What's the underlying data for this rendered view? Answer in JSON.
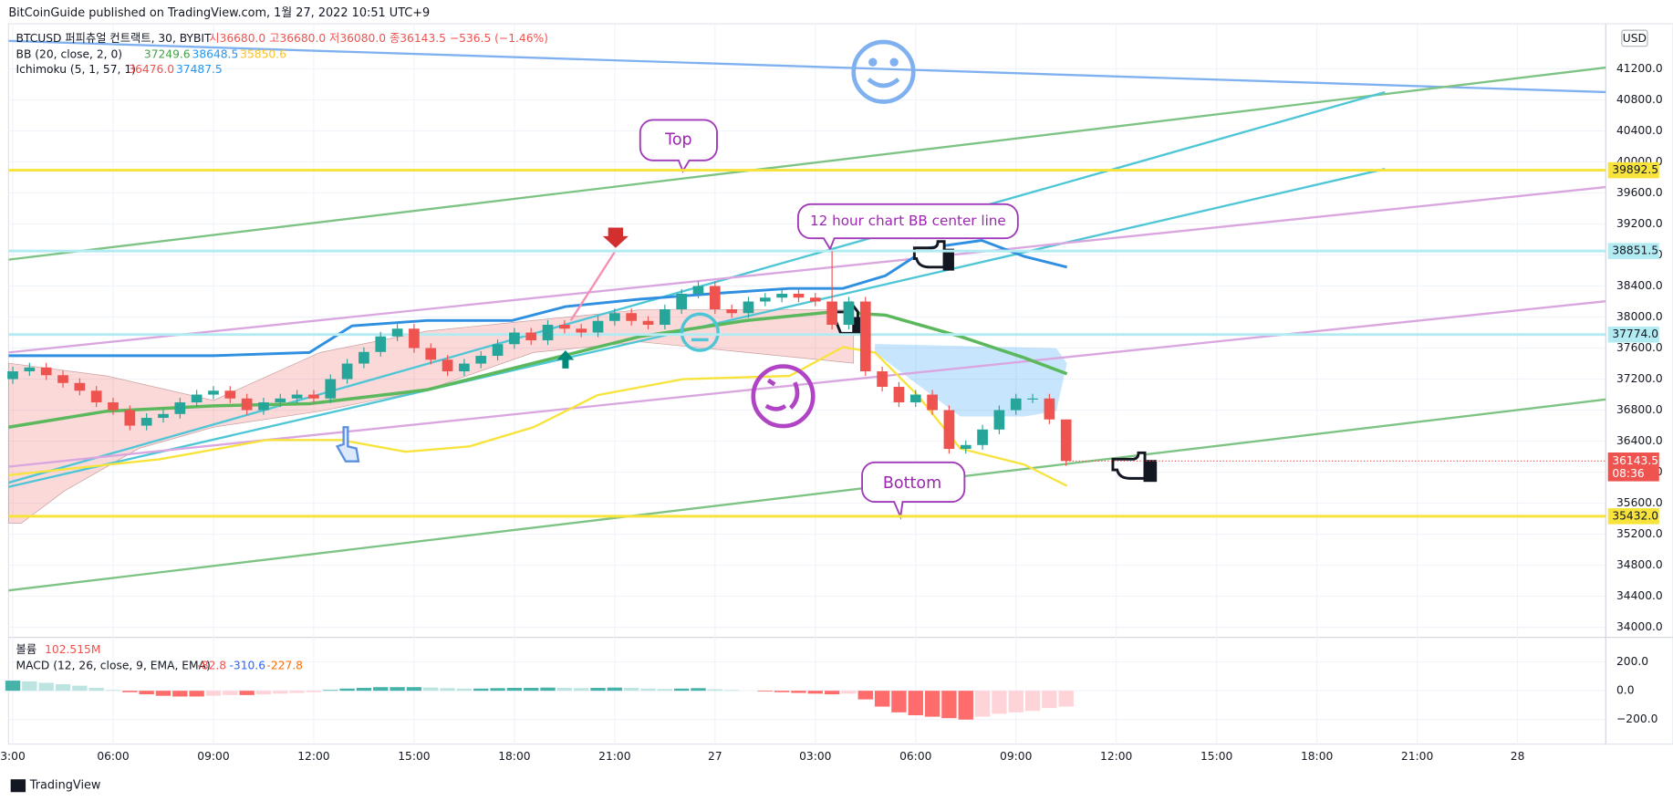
{
  "header": {
    "byline": "BitCoinGuide published on TradingView.com, 1월 27, 2022 10:51 UTC+9",
    "footer": "TradingView"
  },
  "legend": {
    "symbol": "BTCUSD 퍼피츄얼 컨트랙트, 30, BYBIT",
    "ohlc": "시36680.0 고36680.0 저36080.0 종36143.5 −536.5 (−1.46%)",
    "bb": "BB (20, close, 2, 0)",
    "bb_values": [
      "37249.6",
      "38648.5",
      "35850.6"
    ],
    "ichimoku": "Ichimoku (5, 1, 57, 1)",
    "ichimoku_values": [
      "36476.0",
      "37487.5"
    ],
    "volume": "볼륨",
    "volume_value": "102.515M",
    "macd": "MACD (12, 26, close, 9, EMA, EMA)",
    "macd_values": [
      "-82.8",
      "-310.6",
      "-227.8"
    ]
  },
  "annotations": [
    "Top",
    "12 hour chart BB center line",
    "Bottom"
  ],
  "chart_data": {
    "type": "candlestick",
    "currency": "USD",
    "countdown": "08:36",
    "grid": true,
    "up_color": "#26a69a",
    "down_color": "#ef5350",
    "xticks": [
      "3:00",
      "06:00",
      "09:00",
      "12:00",
      "15:00",
      "18:00",
      "21:00",
      "27",
      "03:00",
      "06:00",
      "09:00",
      "12:00",
      "15:00",
      "18:00",
      "21:00",
      "28"
    ],
    "open": [
      37200,
      37300,
      37350,
      37250,
      37150,
      37050,
      36900,
      36800,
      36600,
      36700,
      36750,
      36900,
      37000,
      37050,
      36950,
      36800,
      36900,
      36950,
      37000,
      36950,
      37200,
      37400,
      37550,
      37750,
      37850,
      37600,
      37450,
      37300,
      37400,
      37500,
      37650,
      37800,
      37700,
      37900,
      37850,
      37800,
      37950,
      38050,
      37950,
      37900,
      38100,
      38300,
      38400,
      38100,
      38050,
      38200,
      38250,
      38300,
      38250,
      38200,
      37900,
      38200,
      37300,
      37100,
      36900,
      37000,
      36800,
      36300,
      36350,
      36550,
      36800,
      36950,
      36950,
      36680
    ],
    "high": [
      37360,
      37410,
      37410,
      37310,
      37210,
      37110,
      36960,
      36860,
      36760,
      36810,
      36960,
      37060,
      37110,
      37110,
      37010,
      36960,
      37010,
      37060,
      37060,
      37260,
      37460,
      37610,
      37810,
      37910,
      37910,
      37660,
      37510,
      37460,
      37560,
      37710,
      37860,
      37860,
      37960,
      37960,
      37910,
      38010,
      38110,
      38110,
      38010,
      38160,
      38360,
      38460,
      38460,
      38160,
      38260,
      38310,
      38360,
      38360,
      38310,
      38850,
      38260,
      38260,
      37360,
      37160,
      37060,
      37060,
      36860,
      36410,
      36610,
      36860,
      37010,
      37010,
      37010,
      36680
    ],
    "low": [
      37140,
      37240,
      37190,
      37090,
      36990,
      36840,
      36740,
      36540,
      36540,
      36640,
      36690,
      36840,
      36940,
      36890,
      36740,
      36740,
      36840,
      36890,
      36890,
      36890,
      37140,
      37340,
      37490,
      37690,
      37540,
      37390,
      37240,
      37240,
      37340,
      37440,
      37590,
      37640,
      37640,
      37790,
      37740,
      37740,
      37890,
      37890,
      37840,
      37840,
      38040,
      38240,
      38040,
      37990,
      37990,
      38140,
      38190,
      38190,
      38140,
      37840,
      37840,
      37240,
      37040,
      36840,
      36840,
      36740,
      36240,
      36240,
      36290,
      36490,
      36740,
      36890,
      36620,
      36080
    ],
    "close": [
      37300,
      37350,
      37250,
      37150,
      37050,
      36900,
      36800,
      36600,
      36700,
      36750,
      36900,
      37000,
      37050,
      36950,
      36800,
      36900,
      36950,
      37000,
      36950,
      37200,
      37400,
      37550,
      37750,
      37850,
      37600,
      37450,
      37300,
      37400,
      37500,
      37650,
      37800,
      37700,
      37900,
      37850,
      37800,
      37950,
      38050,
      37950,
      37900,
      38100,
      38300,
      38400,
      38100,
      38050,
      38200,
      38250,
      38300,
      38250,
      38200,
      37900,
      38200,
      37300,
      37100,
      36900,
      37000,
      36800,
      36300,
      36350,
      36550,
      36800,
      36950,
      36950,
      36680,
      36143.5
    ],
    "ylim": [
      33870,
      41780
    ],
    "yticks": [
      {
        "value": 34000,
        "label": "34000.0"
      },
      {
        "value": 34400,
        "label": "34400.0"
      },
      {
        "value": 34800,
        "label": "34800.0"
      },
      {
        "value": 35200,
        "label": "35200.0"
      },
      {
        "value": 35600,
        "label": "35600.0"
      },
      {
        "value": 36000,
        "label": "36000.0"
      },
      {
        "value": 36400,
        "label": "36400.0"
      },
      {
        "value": 36800,
        "label": "36800.0"
      },
      {
        "value": 37200,
        "label": "37200.0"
      },
      {
        "value": 37600,
        "label": "37600.0"
      },
      {
        "value": 38000,
        "label": "38000.0"
      },
      {
        "value": 38400,
        "label": "38400.0"
      },
      {
        "value": 38800,
        "label": "38800.0"
      },
      {
        "value": 39200,
        "label": "39200.0"
      },
      {
        "value": 39600,
        "label": "39600.0"
      },
      {
        "value": 40000,
        "label": "40000.0"
      },
      {
        "value": 40400,
        "label": "40400.0"
      },
      {
        "value": 40800,
        "label": "40800.0"
      },
      {
        "value": 41200,
        "label": "41200.0"
      }
    ],
    "levels": [
      {
        "value": 39892.5,
        "color": "#f7e33a"
      },
      {
        "value": 38851.5,
        "color": "#b2ebf2"
      },
      {
        "value": 37774,
        "label": "37774.0",
        "color": "#b2ebf2"
      },
      {
        "value": 35432,
        "label": "35432.0",
        "color": "#f7e33a"
      }
    ],
    "macd_hist": [
      70,
      65,
      55,
      45,
      35,
      20,
      5,
      -10,
      -25,
      -35,
      -40,
      -40,
      -35,
      -30,
      -30,
      -25,
      -20,
      -15,
      -10,
      5,
      15,
      20,
      25,
      25,
      25,
      22,
      18,
      15,
      15,
      18,
      20,
      20,
      22,
      20,
      18,
      20,
      22,
      20,
      15,
      12,
      15,
      18,
      10,
      5,
      0,
      -5,
      -10,
      -15,
      -20,
      -25,
      -20,
      -60,
      -110,
      -150,
      -170,
      -180,
      -190,
      -200,
      -180,
      -160,
      -150,
      -140,
      -120,
      -110
    ],
    "y2lim": [
      -370,
      370
    ],
    "y2ticks": [
      {
        "value": 200,
        "label": "200.0"
      },
      {
        "value": 0,
        "label": "0.0"
      },
      {
        "value": -200,
        "label": "−200.0"
      }
    ]
  }
}
